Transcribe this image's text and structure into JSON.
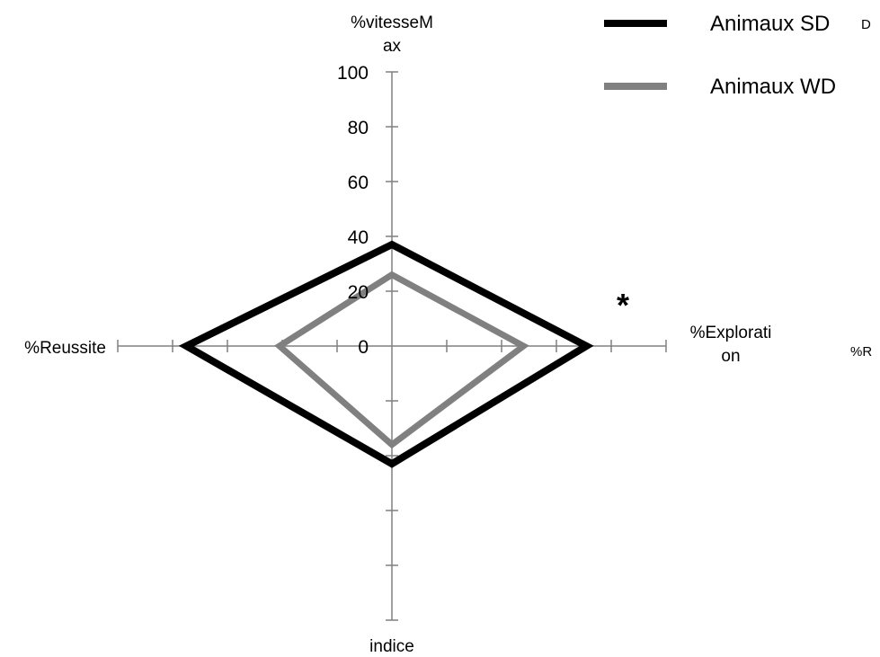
{
  "chart_data": {
    "type": "radar",
    "axes": [
      "%vitesseMax",
      "%Exploration",
      "indice",
      "%Reussite"
    ],
    "axis_label_lines": [
      [
        "%vitesseM",
        "ax"
      ],
      [
        "%Explorati",
        "on"
      ],
      [
        "indice"
      ],
      [
        "%Reussite"
      ]
    ],
    "rlim": [
      0,
      100
    ],
    "r_ticks": [
      0,
      20,
      40,
      60,
      80,
      100
    ],
    "r_tick_labels": [
      "0",
      "20",
      "40",
      "60",
      "80",
      "100"
    ],
    "series": [
      {
        "name": "Animaux SD",
        "values": [
          37,
          71,
          43,
          75
        ],
        "color": "#000000"
      },
      {
        "name": "Animaux WD",
        "values": [
          26,
          48,
          36,
          41
        ],
        "color": "#808080"
      }
    ],
    "annotations": [
      {
        "text": "*",
        "near": "%Exploration"
      }
    ],
    "legend_position": "top-right",
    "clipped_text": [
      "%R",
      "D"
    ],
    "grid": false
  },
  "colors": {
    "axis": "#808080",
    "sd": "#000000",
    "wd": "#808080"
  }
}
